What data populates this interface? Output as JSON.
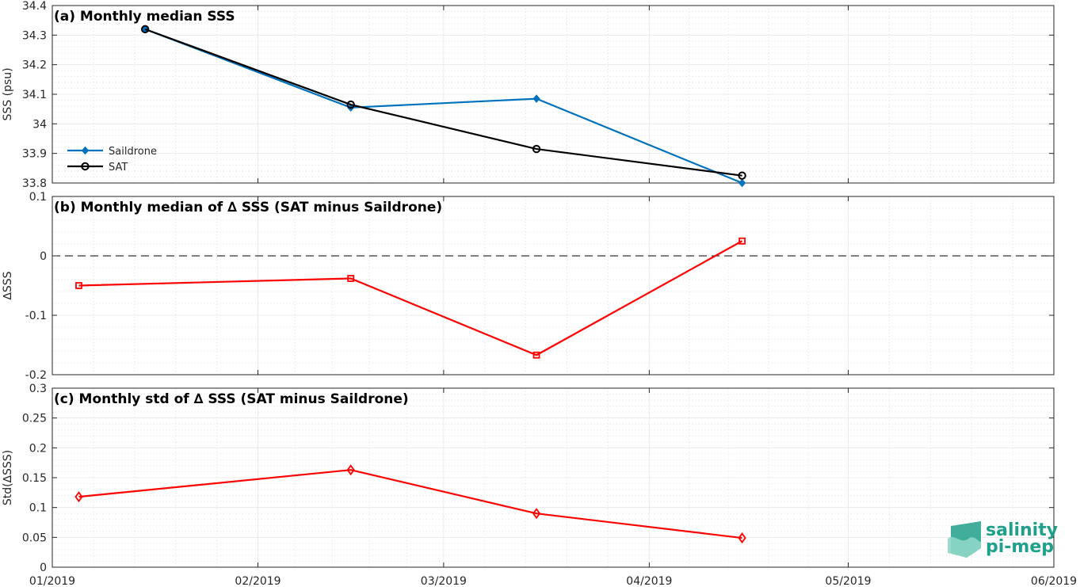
{
  "chart_data": [
    {
      "type": "line",
      "title": "(a) Monthly median SSS",
      "ylabel": "SSS (psu)",
      "xlabel": "",
      "ylim": [
        33.8,
        34.4
      ],
      "yticks": [
        33.8,
        33.9,
        34,
        34.1,
        34.2,
        34.3,
        34.4
      ],
      "ytick_labels": [
        "33.8",
        "33.9",
        "34",
        "34.1",
        "34.2",
        "34.3",
        "34.4"
      ],
      "x": [
        "2019-01-15",
        "2019-02-15",
        "2019-03-15",
        "2019-04-15"
      ],
      "series": [
        {
          "name": "Saildrone",
          "color": "#0072bd",
          "marker": "diamond-filled",
          "values": [
            34.32,
            34.055,
            34.085,
            33.8
          ]
        },
        {
          "name": "SAT",
          "color": "#000000",
          "marker": "circle-open",
          "values": [
            34.32,
            34.065,
            33.915,
            33.825
          ]
        }
      ],
      "legend": {
        "placement": "lower-left"
      },
      "grid": true,
      "minor_grid": true
    },
    {
      "type": "line",
      "title": "(b) Monthly median of ∆ SSS (SAT minus Saildrone)",
      "ylabel": "∆SSS",
      "xlabel": "",
      "ylim": [
        -0.2,
        0.1
      ],
      "yticks": [
        -0.2,
        -0.1,
        0,
        0.1
      ],
      "ytick_labels": [
        "-0.2",
        "-0.1",
        "0",
        "0.1"
      ],
      "x": [
        "2019-01-05",
        "2019-02-15",
        "2019-03-15",
        "2019-04-15"
      ],
      "series": [
        {
          "name": "",
          "color": "#ff0000",
          "marker": "square-open",
          "values": [
            -0.05,
            -0.038,
            -0.167,
            0.025
          ]
        }
      ],
      "reference_line": {
        "y": 0,
        "style": "dashed",
        "color": "#000000"
      },
      "grid": true,
      "minor_grid": true
    },
    {
      "type": "line",
      "title": "(c) Monthly std of ∆ SSS (SAT minus Saildrone)",
      "ylabel": "Std(∆SSS)",
      "xlabel": "",
      "ylim": [
        0,
        0.3
      ],
      "yticks": [
        0,
        0.05,
        0.1,
        0.15,
        0.2,
        0.25,
        0.3
      ],
      "ytick_labels": [
        "0",
        "0.05",
        "0.1",
        "0.15",
        "0.2",
        "0.25",
        "0.3"
      ],
      "x": [
        "2019-01-05",
        "2019-02-15",
        "2019-03-15",
        "2019-04-15"
      ],
      "series": [
        {
          "name": "",
          "color": "#ff0000",
          "marker": "diamond-open",
          "values": [
            0.118,
            0.163,
            0.09,
            0.049
          ]
        }
      ],
      "grid": true,
      "minor_grid": true
    }
  ],
  "x_axis": {
    "range": [
      "2019-01-01",
      "2019-06-01"
    ],
    "ticks": [
      "2019-01-01",
      "2019-02-01",
      "2019-03-01",
      "2019-04-01",
      "2019-05-01",
      "2019-06-01"
    ],
    "tick_labels": [
      "01/2019",
      "02/2019",
      "03/2019",
      "04/2019",
      "05/2019",
      "06/2019"
    ]
  },
  "logo": {
    "line1": "salinity",
    "line2": "pi-mep",
    "color": "#1fa08a"
  }
}
